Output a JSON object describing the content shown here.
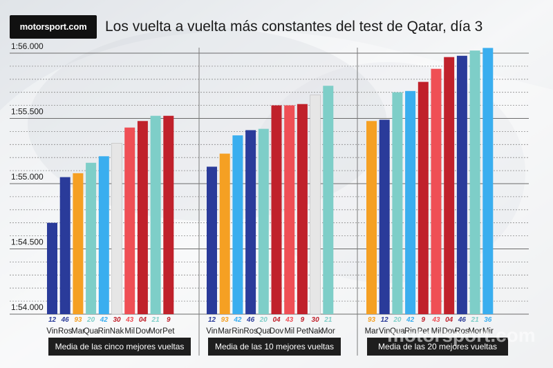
{
  "header": {
    "logo_text": "motorsport.com",
    "title": "Los vuelta a vuelta más constantes del test de Qatar, día 3"
  },
  "watermark": "motorsport.com",
  "colors": {
    "dark_blue": "#2a3b9a",
    "orange": "#f5a023",
    "light_blue": "#3aaeef",
    "teal": "#7ecec8",
    "light_red": "#ef4f55",
    "dark_red": "#c0212b",
    "light_gray": "#e6e6e6"
  },
  "chart_data": {
    "type": "bar",
    "ylim": [
      "1:54.000",
      "1:56.100"
    ],
    "yticks": [
      "1:54.000",
      "1:54.500",
      "1:55.000",
      "1:55.500",
      "1:56.000"
    ],
    "groups": [
      {
        "label": "Media de las cinco mejores vueltas",
        "bars": [
          {
            "rider": "Vin",
            "number": "12",
            "value": 54.7,
            "color": "dark_blue"
          },
          {
            "rider": "Ros",
            "number": "46",
            "value": 55.05,
            "color": "dark_blue"
          },
          {
            "rider": "Mar",
            "number": "93",
            "value": 55.08,
            "color": "orange"
          },
          {
            "rider": "Qua",
            "number": "20",
            "value": 55.16,
            "color": "teal"
          },
          {
            "rider": "Rin",
            "number": "42",
            "value": 55.21,
            "color": "light_blue"
          },
          {
            "rider": "Nak",
            "number": "30",
            "value": 55.31,
            "color": "light_gray"
          },
          {
            "rider": "Mil",
            "number": "43",
            "value": 55.43,
            "color": "light_red"
          },
          {
            "rider": "Dov",
            "number": "04",
            "value": 55.48,
            "color": "dark_red"
          },
          {
            "rider": "Mor",
            "number": "21",
            "value": 55.52,
            "color": "teal"
          },
          {
            "rider": "Pet",
            "number": "9",
            "value": 55.52,
            "color": "dark_red"
          }
        ]
      },
      {
        "label": "Media de las 10 mejores vueltas",
        "bars": [
          {
            "rider": "Vin",
            "number": "12",
            "value": 55.13,
            "color": "dark_blue"
          },
          {
            "rider": "Mar",
            "number": "93",
            "value": 55.23,
            "color": "orange"
          },
          {
            "rider": "Rin",
            "number": "42",
            "value": 55.37,
            "color": "light_blue"
          },
          {
            "rider": "Ros",
            "number": "46",
            "value": 55.41,
            "color": "dark_blue"
          },
          {
            "rider": "Qua",
            "number": "20",
            "value": 55.42,
            "color": "teal"
          },
          {
            "rider": "Dov",
            "number": "04",
            "value": 55.6,
            "color": "dark_red"
          },
          {
            "rider": "Mil",
            "number": "43",
            "value": 55.6,
            "color": "light_red"
          },
          {
            "rider": "Pet",
            "number": "9",
            "value": 55.61,
            "color": "dark_red"
          },
          {
            "rider": "Nak",
            "number": "30",
            "value": 55.68,
            "color": "light_gray"
          },
          {
            "rider": "Mor",
            "number": "21",
            "value": 55.75,
            "color": "teal"
          }
        ]
      },
      {
        "label": "Media de las 20 mejores vueltas",
        "bars": [
          {
            "rider": "Mar",
            "number": "93",
            "value": 55.48,
            "color": "orange"
          },
          {
            "rider": "Vin",
            "number": "12",
            "value": 55.49,
            "color": "dark_blue"
          },
          {
            "rider": "Qua",
            "number": "20",
            "value": 55.7,
            "color": "teal"
          },
          {
            "rider": "Rin",
            "number": "42",
            "value": 55.71,
            "color": "light_blue"
          },
          {
            "rider": "Pet",
            "number": "9",
            "value": 55.78,
            "color": "dark_red"
          },
          {
            "rider": "Mil",
            "number": "43",
            "value": 55.88,
            "color": "light_red"
          },
          {
            "rider": "Dov",
            "number": "04",
            "value": 55.97,
            "color": "dark_red"
          },
          {
            "rider": "Ros",
            "number": "46",
            "value": 55.98,
            "color": "dark_blue"
          },
          {
            "rider": "Mor",
            "number": "21",
            "value": 56.02,
            "color": "teal"
          },
          {
            "rider": "Mir",
            "number": "36",
            "value": 56.04,
            "color": "light_blue"
          }
        ]
      }
    ]
  }
}
